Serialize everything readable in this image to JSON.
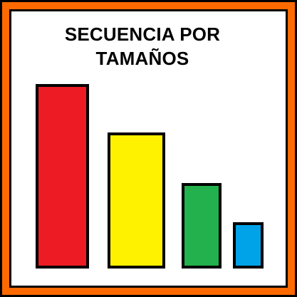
{
  "title": {
    "line1": "SECUENCIA POR",
    "line2": "TAMAÑOS"
  },
  "colors": {
    "frame": "#ff6a00",
    "outline": "#000000",
    "background": "#ffffff"
  },
  "bars": [
    {
      "color": "#ed1c24",
      "relative_size": 4
    },
    {
      "color": "#fff200",
      "relative_size": 3
    },
    {
      "color": "#22b14c",
      "relative_size": 2
    },
    {
      "color": "#00a2e8",
      "relative_size": 1
    }
  ]
}
